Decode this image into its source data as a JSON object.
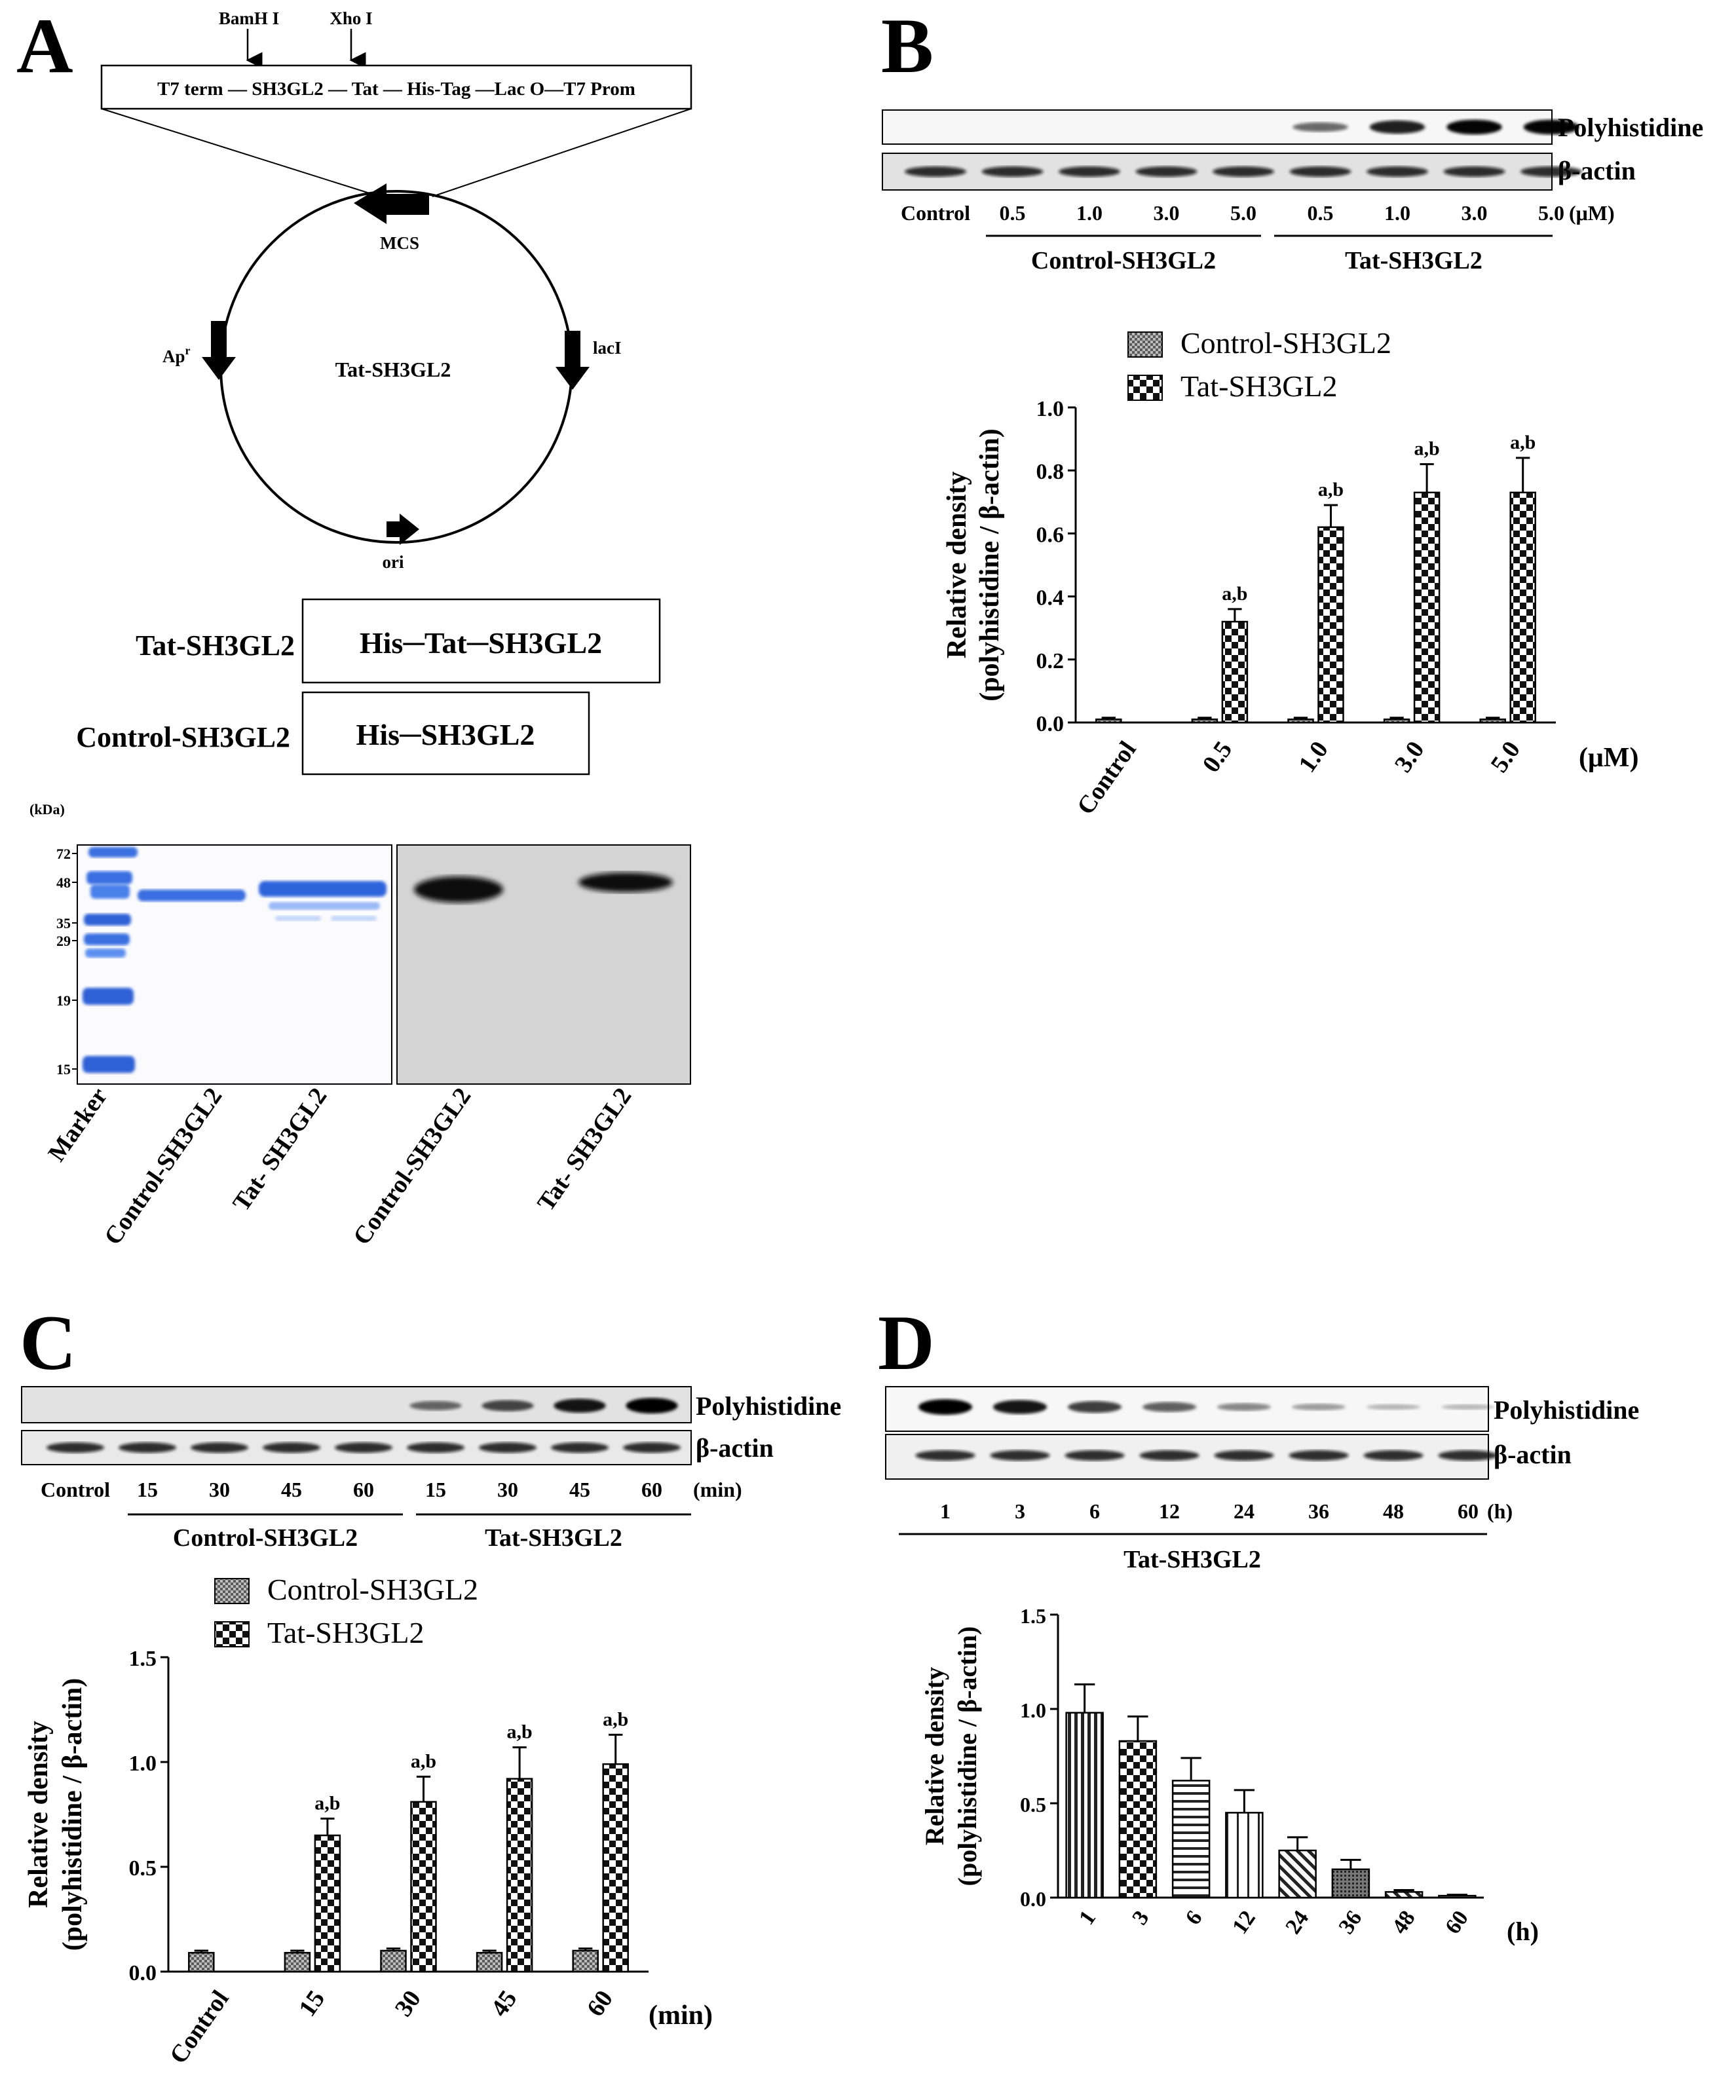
{
  "panels": {
    "a": "A",
    "b": "B",
    "c": "C",
    "d": "D"
  },
  "plasmid": {
    "site1": "BamH I",
    "site2": "Xho I",
    "cassette": "T7 term — SH3GL2 — Tat — His-Tag —Lac O—T7 Prom",
    "mcs": "MCS",
    "apr": "Ap",
    "apr_sup": "r",
    "lacI": "lacI",
    "name": "Tat-SH3GL2",
    "ori": "ori"
  },
  "constructs": [
    {
      "name": "Tat-SH3GL2",
      "box": "His─Tat─SH3GL2"
    },
    {
      "name": "Control-SH3GL2",
      "box": "His─SH3GL2"
    }
  ],
  "gel": {
    "unit": "(kDa)",
    "markers": [
      "72",
      "48",
      "35",
      "29",
      "19",
      "15"
    ],
    "lanes": [
      "Marker",
      "Control-SH3GL2",
      "Tat- SH3GL2",
      "Control-SH3GL2",
      "Tat- SH3GL2"
    ]
  },
  "blot_b": {
    "rows": [
      "Polyhistidine",
      "β-actin"
    ],
    "lanes": [
      "Control",
      "0.5",
      "1.0",
      "3.0",
      "5.0",
      "0.5",
      "1.0",
      "3.0",
      "5.0"
    ],
    "unit": "(μM)",
    "groups": [
      "Control-SH3GL2",
      "Tat-SH3GL2"
    ]
  },
  "blot_c": {
    "rows": [
      "Polyhistidine",
      "β-actin"
    ],
    "lanes": [
      "Control",
      "15",
      "30",
      "45",
      "60",
      "15",
      "30",
      "45",
      "60"
    ],
    "unit": "(min)",
    "groups": [
      "Control-SH3GL2",
      "Tat-SH3GL2"
    ]
  },
  "blot_d": {
    "rows": [
      "Polyhistidine",
      "β-actin"
    ],
    "lanes": [
      "1",
      "3",
      "6",
      "12",
      "24",
      "36",
      "48",
      "60"
    ],
    "unit": "(h)",
    "group": "Tat-SH3GL2"
  },
  "chart_data": [
    {
      "panel": "B",
      "type": "bar",
      "categories": [
        "Control",
        "0.5",
        "1.0",
        "3.0",
        "5.0"
      ],
      "series": [
        {
          "name": "Control-SH3GL2",
          "values": [
            0.01,
            0.01,
            0.01,
            0.01,
            0.01
          ],
          "errors": [
            0.005,
            0.005,
            0.005,
            0.005,
            0.005
          ]
        },
        {
          "name": "Tat-SH3GL2",
          "values": [
            null,
            0.32,
            0.62,
            0.73,
            0.73
          ],
          "errors": [
            null,
            0.04,
            0.07,
            0.09,
            0.11
          ]
        }
      ],
      "annotations": [
        "",
        "a,b",
        "a,b",
        "a,b",
        "a,b"
      ],
      "ylabel": "Relative density",
      "ylabel2": "(polyhistidine / β-actin)",
      "xunit": "(μM)",
      "ylim": [
        0,
        1.0
      ],
      "yticks": [
        "0.0",
        "0.2",
        "0.4",
        "0.6",
        "0.8",
        "1.0"
      ]
    },
    {
      "panel": "C",
      "type": "bar",
      "categories": [
        "Control",
        "15",
        "30",
        "45",
        "60"
      ],
      "series": [
        {
          "name": "Control-SH3GL2",
          "values": [
            0.09,
            0.09,
            0.1,
            0.09,
            0.1
          ],
          "errors": [
            0.01,
            0.01,
            0.01,
            0.01,
            0.01
          ]
        },
        {
          "name": "Tat-SH3GL2",
          "values": [
            null,
            0.65,
            0.81,
            0.92,
            0.99
          ],
          "errors": [
            null,
            0.08,
            0.12,
            0.15,
            0.14
          ]
        }
      ],
      "annotations": [
        "",
        "a,b",
        "a,b",
        "a,b",
        "a,b"
      ],
      "ylabel": "Relative density",
      "ylabel2": "(polyhistidine / β-actin)",
      "xunit": "(min)",
      "ylim": [
        0,
        1.5
      ],
      "yticks": [
        "0.0",
        "0.5",
        "1.0",
        "1.5"
      ]
    },
    {
      "panel": "D",
      "type": "bar",
      "categories": [
        "1",
        "3",
        "6",
        "12",
        "24",
        "36",
        "48",
        "60"
      ],
      "series": [
        {
          "name": "Tat-SH3GL2",
          "values": [
            0.98,
            0.83,
            0.62,
            0.45,
            0.25,
            0.15,
            0.03,
            0.01
          ],
          "errors": [
            0.15,
            0.13,
            0.12,
            0.12,
            0.07,
            0.05,
            0.01,
            0.005
          ]
        }
      ],
      "ylabel": "Relative density",
      "ylabel2": "(polyhistidine / β-actin)",
      "xunit": "(h)",
      "ylim": [
        0,
        1.5
      ],
      "yticks": [
        "0.0",
        "0.5",
        "1.0",
        "1.5"
      ]
    }
  ]
}
